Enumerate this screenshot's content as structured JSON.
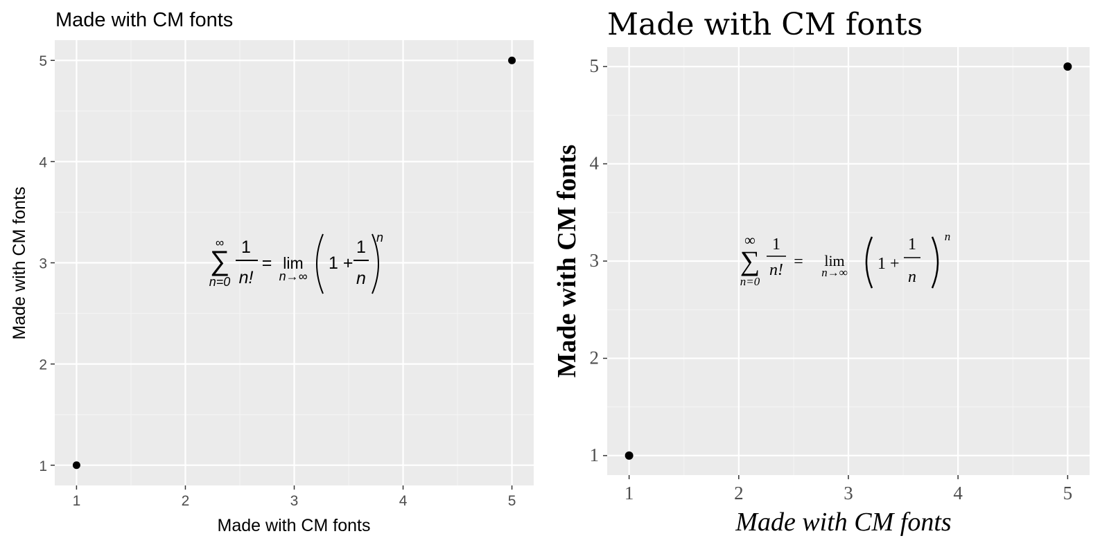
{
  "chart_data": [
    {
      "type": "scatter",
      "title": "Made with CM fonts",
      "xlabel": "Made with CM fonts",
      "ylabel": "Made with CM fonts",
      "xlim": [
        0.8,
        5.2
      ],
      "ylim": [
        0.8,
        5.2
      ],
      "x_ticks": [
        "1",
        "2",
        "3",
        "4",
        "5"
      ],
      "y_ticks": [
        "1",
        "2",
        "3",
        "4",
        "5"
      ],
      "points": [
        {
          "x": 1,
          "y": 1
        },
        {
          "x": 5,
          "y": 5
        }
      ],
      "grid": true,
      "annotation": {
        "text": "sum_{n=0}^{inf} 1/n! = lim_{n->inf} (1 + 1/n)^n",
        "x": 3,
        "y": 3,
        "sum_upper": "∞",
        "sum_lower": "n=0",
        "frac1_num": "1",
        "frac1_den": "n!",
        "equals": "=",
        "lim": "lim",
        "lim_sub": "n→∞",
        "one_plus": "1 +",
        "frac2_num": "1",
        "frac2_den": "n",
        "exponent": "n"
      },
      "font_style": "sans"
    },
    {
      "type": "scatter",
      "title": "Made with CM fonts",
      "xlabel": "Made with CM fonts",
      "ylabel": "Made with CM fonts",
      "xlim": [
        0.8,
        5.2
      ],
      "ylim": [
        0.8,
        5.2
      ],
      "x_ticks": [
        "1",
        "2",
        "3",
        "4",
        "5"
      ],
      "y_ticks": [
        "1",
        "2",
        "3",
        "4",
        "5"
      ],
      "points": [
        {
          "x": 1,
          "y": 1
        },
        {
          "x": 5,
          "y": 5
        }
      ],
      "grid": true,
      "annotation": {
        "text": "sum_{n=0}^{inf} 1/n! = lim_{n->inf} (1 + 1/n)^n",
        "x": 3,
        "y": 3,
        "sum_upper": "∞",
        "sum_lower": "n=0",
        "frac1_num": "1",
        "frac1_den": "n!",
        "equals": "=",
        "lim": "lim",
        "lim_sub": "n→∞",
        "one_plus": "1 +",
        "frac2_num": "1",
        "frac2_den": "n",
        "exponent": "n"
      },
      "font_style": "serif"
    }
  ],
  "colors": {
    "panel_background": "#ebebeb",
    "grid_major": "#ffffff",
    "grid_minor": "#f5f5f5",
    "point": "#000000",
    "tick_text": "#4d4d4d"
  }
}
